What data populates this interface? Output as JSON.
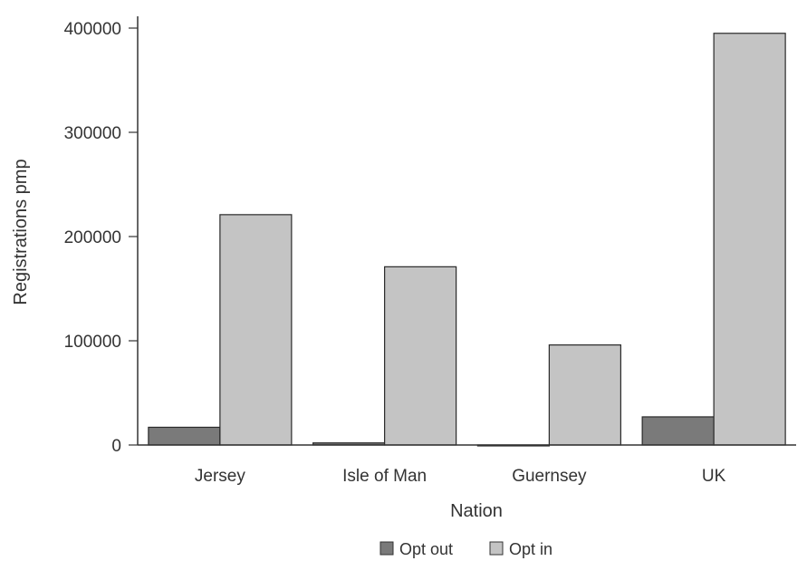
{
  "chart_data": {
    "type": "bar",
    "title": "",
    "xlabel": "Nation",
    "ylabel": "Registrations pmp",
    "categories": [
      "Jersey",
      "Isle of Man",
      "Guernsey",
      "UK"
    ],
    "series": [
      {
        "name": "Opt out",
        "values": [
          17000,
          2000,
          0,
          27000
        ],
        "color": "#7a7a7a"
      },
      {
        "name": "Opt in",
        "values": [
          221000,
          171000,
          96000,
          395000
        ],
        "color": "#c4c4c4"
      }
    ],
    "ylim": [
      0,
      400000
    ],
    "yticks": [
      0,
      100000,
      200000,
      300000,
      400000
    ],
    "ytick_labels": [
      "0",
      "100000",
      "200000",
      "300000",
      "400000"
    ],
    "grid": false,
    "legend_position": "bottom"
  }
}
